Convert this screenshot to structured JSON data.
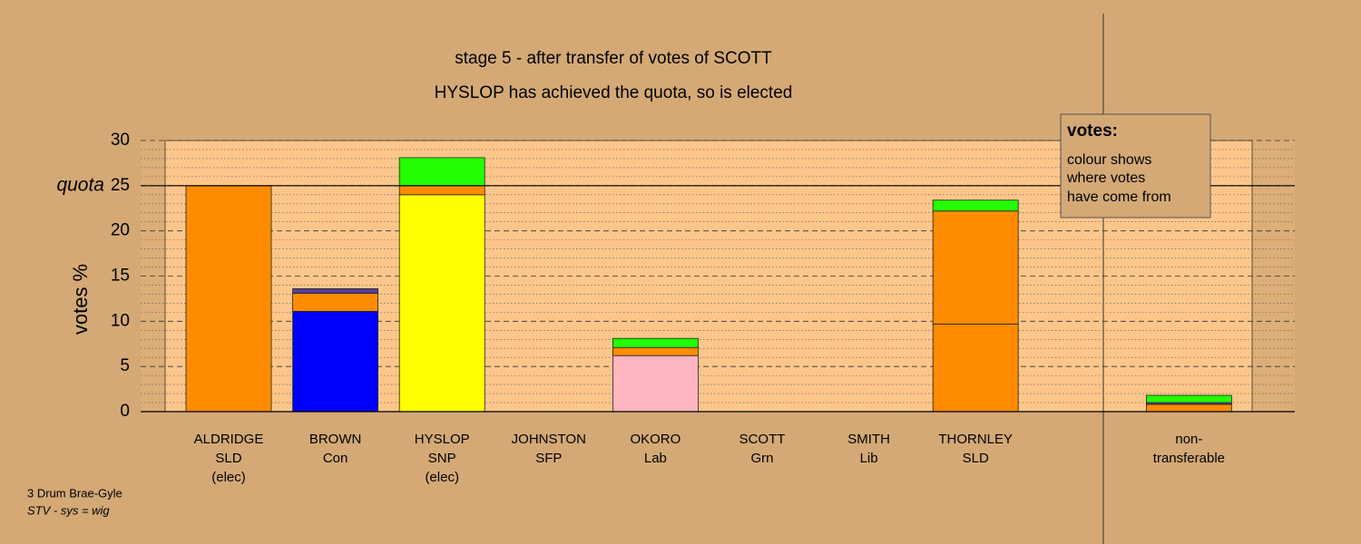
{
  "chart_data": {
    "type": "stacked-bar",
    "title": "stage 5 - after transfer of votes of SCOTT",
    "subtitle": "HYSLOP has achieved the quota, so is elected",
    "y_label": "votes %",
    "categories": [
      [
        "ALDRIDGE",
        "SLD",
        "(elec)"
      ],
      [
        "BROWN",
        "Con"
      ],
      [
        "HYSLOP",
        "SNP",
        "(elec)"
      ],
      [
        "JOHNSTON",
        "SFP"
      ],
      [
        "OKORO",
        "Lab"
      ],
      [
        "SCOTT",
        "Grn"
      ],
      [
        "SMITH",
        "Lib"
      ],
      [
        "THORNLEY",
        "SLD"
      ],
      null,
      [
        "non-",
        "transferable"
      ]
    ],
    "stacks": [
      [
        {
          "value": 25,
          "color": "#ff8c00"
        }
      ],
      [
        {
          "value": 11.1,
          "color": "#0000ff"
        },
        {
          "value": 2.0,
          "color": "#ff8c00"
        },
        {
          "value": 0.5,
          "color": "#5a3c9a"
        }
      ],
      [
        {
          "value": 24.0,
          "color": "#ffff00"
        },
        {
          "value": 1.0,
          "color": "#ff8c00"
        },
        {
          "value": 3.1,
          "color": "#22ff00"
        }
      ],
      [],
      [
        {
          "value": 6.2,
          "color": "#ffb6c1"
        },
        {
          "value": 0.9,
          "color": "#ff8c00"
        },
        {
          "value": 1.0,
          "color": "#22ff00"
        }
      ],
      [],
      [],
      [
        {
          "value": 9.7,
          "color": "#ff8c00"
        },
        {
          "value": 12.5,
          "color": "#ff8c00"
        },
        {
          "value": 1.2,
          "color": "#22ff00"
        }
      ],
      [],
      [
        {
          "value": 0.8,
          "color": "#ff8c00"
        },
        {
          "value": 0.2,
          "color": "#5a3c9a"
        },
        {
          "value": 0.8,
          "color": "#22ff00"
        }
      ]
    ],
    "ylim": [
      0,
      30
    ],
    "yticks": [
      0,
      5,
      10,
      15,
      20,
      25,
      30
    ],
    "minor_grid_step": 1,
    "grid": true,
    "quota": {
      "value": 25,
      "label": "quota"
    },
    "info_box": {
      "title": "votes:",
      "lines": [
        "colour shows",
        "where votes",
        "have come from"
      ]
    },
    "notes": [
      "3 Drum Brae-Gyle",
      "STV - sys = wig"
    ]
  }
}
